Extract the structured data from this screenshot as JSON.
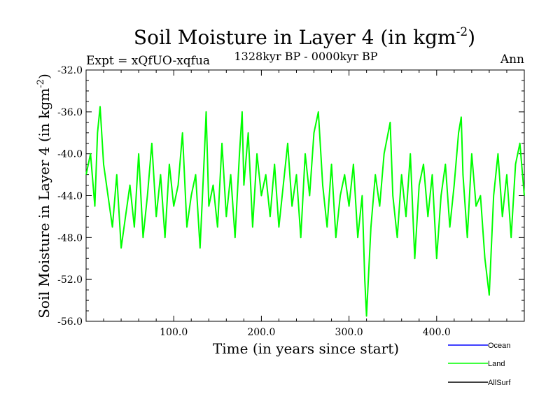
{
  "chart_data": {
    "type": "line",
    "title": "Soil Moisture in Layer 4 (in kgm",
    "title_sup": "-2",
    "title_close": ")",
    "subtitle_left": "Expt = xQfUO-xqfua",
    "subtitle_center": "1328kyr BP - 0000kyr BP",
    "subtitle_right": "Ann",
    "xlabel": "Time (in years since start)",
    "ylabel": "Soil Moisture in Layer 4 (in kgm",
    "ylabel_sup": "-2",
    "ylabel_close": ")",
    "xlim": [
      0,
      500
    ],
    "ylim": [
      -56,
      -32
    ],
    "x_ticks": [
      100,
      200,
      300,
      400
    ],
    "x_tick_labels": [
      "100.0",
      "200.0",
      "300.0",
      "400.0"
    ],
    "y_ticks": [
      -32,
      -36,
      -40,
      -44,
      -48,
      -52,
      -56
    ],
    "y_tick_labels": [
      "-32.0",
      "-36.0",
      "-40.0",
      "-44.0",
      "-48.0",
      "-52.0",
      "-56.0"
    ],
    "legend": [
      {
        "name": "Ocean",
        "color": "#0000ff"
      },
      {
        "name": "Land",
        "color": "#00ff00"
      },
      {
        "name": "AllSurf",
        "color": "#000000"
      }
    ],
    "series": [
      {
        "name": "Land",
        "color": "#00ff00",
        "x": [
          0,
          5,
          10,
          13,
          16,
          20,
          25,
          30,
          35,
          40,
          45,
          50,
          55,
          60,
          65,
          70,
          75,
          80,
          85,
          90,
          95,
          100,
          105,
          110,
          115,
          120,
          125,
          130,
          135,
          137,
          140,
          145,
          150,
          155,
          160,
          165,
          170,
          175,
          178,
          180,
          185,
          190,
          195,
          200,
          205,
          210,
          215,
          220,
          225,
          230,
          235,
          240,
          245,
          250,
          255,
          260,
          265,
          270,
          275,
          280,
          285,
          290,
          295,
          300,
          305,
          310,
          315,
          318,
          320,
          325,
          330,
          335,
          340,
          347,
          350,
          355,
          360,
          365,
          370,
          375,
          380,
          385,
          390,
          395,
          400,
          405,
          410,
          415,
          420,
          425,
          428,
          430,
          435,
          440,
          445,
          450,
          455,
          460,
          465,
          470,
          475,
          480,
          485,
          490,
          495,
          500
        ],
        "values": [
          -42,
          -40,
          -45,
          -38,
          -35.5,
          -41,
          -44,
          -47,
          -42,
          -49,
          -46,
          -43,
          -47,
          -40,
          -48,
          -44,
          -39,
          -46,
          -42,
          -48,
          -41,
          -45,
          -43,
          -38,
          -47,
          -44,
          -42,
          -49,
          -40,
          -36,
          -45,
          -43,
          -47,
          -39,
          -46,
          -42,
          -48,
          -40,
          -36,
          -43,
          -38,
          -47,
          -40,
          -44,
          -42,
          -46,
          -41,
          -47,
          -43,
          -39,
          -45,
          -42,
          -48,
          -40,
          -44,
          -38,
          -36,
          -43,
          -47,
          -41,
          -48,
          -44,
          -42,
          -45,
          -41,
          -48,
          -44,
          -52,
          -55.5,
          -47,
          -42,
          -45,
          -40,
          -37,
          -44,
          -48,
          -42,
          -46,
          -40,
          -50,
          -43,
          -41,
          -46,
          -42,
          -50,
          -44,
          -41,
          -47,
          -43,
          -38,
          -36.5,
          -42,
          -48,
          -40,
          -45,
          -44,
          -50,
          -53.5,
          -44,
          -40,
          -46,
          -42,
          -48,
          -41,
          -39,
          -44
        ]
      }
    ]
  }
}
